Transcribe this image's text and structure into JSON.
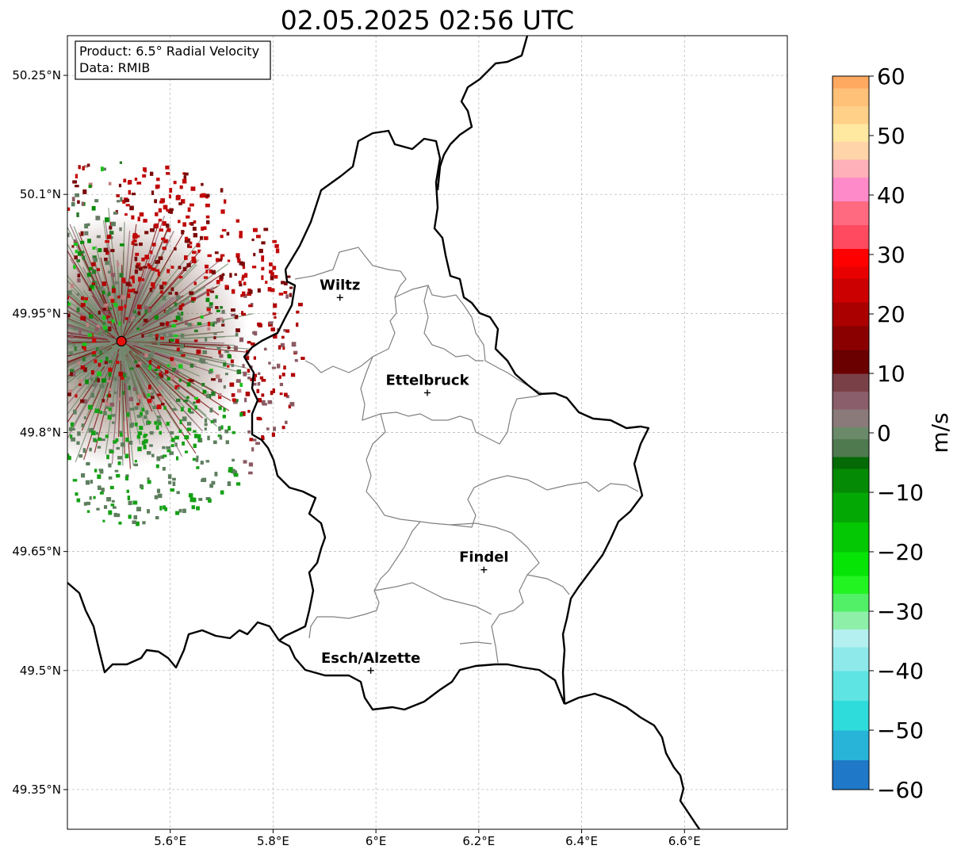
{
  "title": "02.05.2025 02:56 UTC",
  "info_box": {
    "product": "Product: 6.5° Radial Velocity",
    "data": "Data: RMIB"
  },
  "axes": {
    "x_ticks": [
      {
        "value": 5.6,
        "label": "5.6°E"
      },
      {
        "value": 5.8,
        "label": "5.8°E"
      },
      {
        "value": 6.0,
        "label": "6°E"
      },
      {
        "value": 6.2,
        "label": "6.2°E"
      },
      {
        "value": 6.4,
        "label": "6.4°E"
      },
      {
        "value": 6.6,
        "label": "6.6°E"
      }
    ],
    "y_ticks": [
      {
        "value": 50.25,
        "label": "50.25°N"
      },
      {
        "value": 50.1,
        "label": "50.1°N"
      },
      {
        "value": 49.95,
        "label": "49.95°N"
      },
      {
        "value": 49.8,
        "label": "49.8°N"
      },
      {
        "value": 49.65,
        "label": "49.65°N"
      },
      {
        "value": 49.5,
        "label": "49.5°N"
      },
      {
        "value": 49.35,
        "label": "49.35°N"
      }
    ],
    "lon_range": [
      5.4,
      6.8
    ],
    "lat_range": [
      49.3,
      50.3
    ],
    "grid": true
  },
  "cities": [
    {
      "name": "Wiltz",
      "lon": 5.93,
      "lat": 49.97
    },
    {
      "name": "Ettelbruck",
      "lon": 6.1,
      "lat": 49.85
    },
    {
      "name": "Findel",
      "lon": 6.21,
      "lat": 49.627
    },
    {
      "name": "Esch/Alzette",
      "lon": 5.99,
      "lat": 49.5
    }
  ],
  "radar_site": {
    "lon": 5.505,
    "lat": 49.915,
    "color": "#e8100b"
  },
  "colorbar": {
    "label": "m/s",
    "min": -60,
    "max": 60,
    "ticks": [
      60,
      50,
      40,
      30,
      20,
      10,
      0,
      -10,
      -20,
      -30,
      -40,
      -50,
      -60
    ],
    "tick_labels": [
      "60",
      "50",
      "40",
      "30",
      "20",
      "10",
      "0",
      "−10",
      "−20",
      "−30",
      "−40",
      "−50",
      "−60"
    ]
  }
}
